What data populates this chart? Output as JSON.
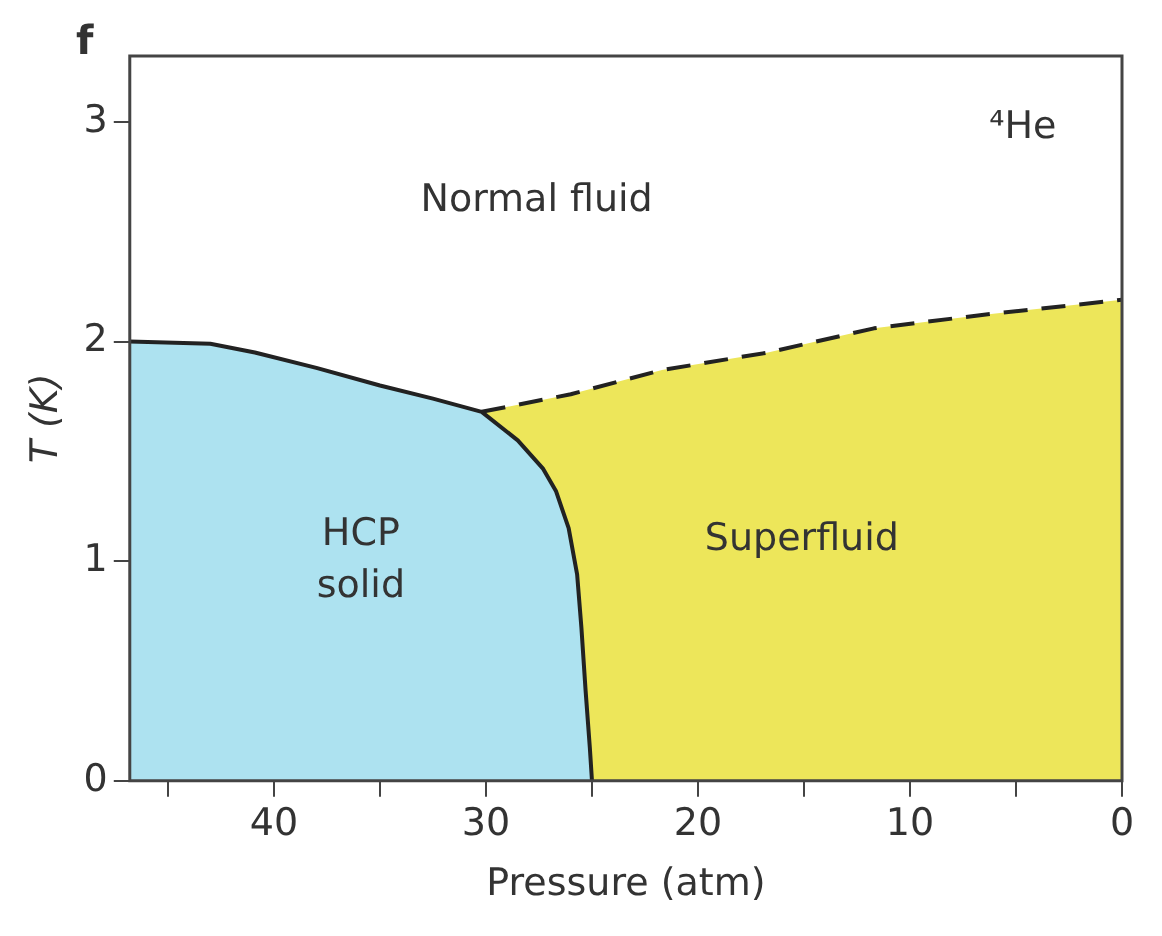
{
  "chart_data": {
    "type": "area",
    "xlabel": "Pressure (atm)",
    "ylabel": "T (K)",
    "xlim": [
      46.8,
      0
    ],
    "ylim": [
      0,
      3.3
    ],
    "xticks": [
      {
        "value": 45,
        "label": null
      },
      40,
      {
        "value": 35,
        "label": null
      },
      30,
      {
        "value": 25,
        "label": null
      },
      20,
      {
        "value": 15,
        "label": null
      },
      10,
      {
        "value": 5,
        "label": null
      },
      0
    ],
    "yticks": [
      0,
      1,
      2,
      3
    ],
    "grid": false,
    "legend": false,
    "series": [
      {
        "name": "HCP solid",
        "color": "#ade2f0",
        "line_style": "solid",
        "x": [
          46.8,
          43,
          40.9,
          38,
          35,
          32.5,
          30.2,
          28.5,
          27.3,
          26.7,
          26.1,
          25.7,
          25.5,
          25.3,
          25.1,
          25.0
        ],
        "values": [
          2.0,
          1.99,
          1.95,
          1.88,
          1.8,
          1.74,
          1.68,
          1.55,
          1.42,
          1.32,
          1.15,
          0.94,
          0.7,
          0.41,
          0.15,
          0
        ]
      },
      {
        "name": "Superfluid",
        "color": "#ede65a",
        "line_style": "dashed",
        "x": [
          30.2,
          26,
          21.7,
          16.7,
          11.7,
          6.7,
          0
        ],
        "values": [
          1.68,
          1.76,
          1.87,
          1.95,
          2.06,
          2.12,
          2.19
        ]
      }
    ],
    "annotations": [
      "f",
      "Normal fluid",
      "⁴He"
    ]
  }
}
